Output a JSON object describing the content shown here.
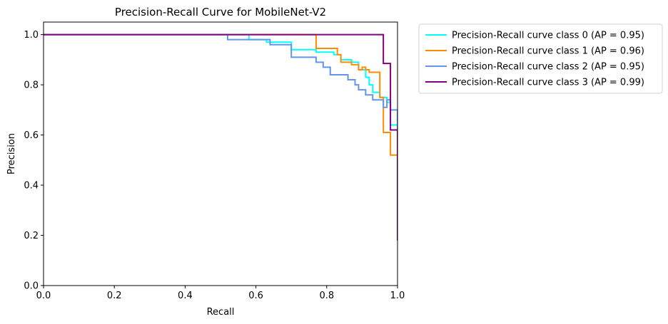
{
  "chart_data": {
    "type": "line",
    "title": "Precision-Recall Curve for MobileNet-V2",
    "xlabel": "Recall",
    "ylabel": "Precision",
    "xlim": [
      0.0,
      1.0
    ],
    "ylim": [
      0.0,
      1.05
    ],
    "xticks": [
      "0.0",
      "0.2",
      "0.4",
      "0.6",
      "0.8",
      "1.0"
    ],
    "yticks": [
      "0.0",
      "0.2",
      "0.4",
      "0.6",
      "0.8",
      "1.0"
    ],
    "grid": false,
    "legend_position": "outside-top-right",
    "series": [
      {
        "name": "Precision-Recall curve class 0 (AP = 0.95)",
        "color": "#00ffff",
        "points": [
          [
            0.0,
            1.0
          ],
          [
            0.58,
            1.0
          ],
          [
            0.58,
            0.98
          ],
          [
            0.63,
            0.98
          ],
          [
            0.63,
            0.97
          ],
          [
            0.7,
            0.97
          ],
          [
            0.7,
            0.94
          ],
          [
            0.77,
            0.94
          ],
          [
            0.77,
            0.93
          ],
          [
            0.81,
            0.93
          ],
          [
            0.82,
            0.93
          ],
          [
            0.82,
            0.92
          ],
          [
            0.84,
            0.92
          ],
          [
            0.84,
            0.9
          ],
          [
            0.87,
            0.9
          ],
          [
            0.87,
            0.89
          ],
          [
            0.89,
            0.89
          ],
          [
            0.89,
            0.86
          ],
          [
            0.91,
            0.86
          ],
          [
            0.91,
            0.83
          ],
          [
            0.92,
            0.83
          ],
          [
            0.92,
            0.8
          ],
          [
            0.93,
            0.8
          ],
          [
            0.93,
            0.77
          ],
          [
            0.95,
            0.77
          ],
          [
            0.95,
            0.75
          ],
          [
            0.97,
            0.75
          ],
          [
            0.97,
            0.73
          ],
          [
            0.98,
            0.73
          ],
          [
            0.98,
            0.64
          ],
          [
            1.0,
            0.64
          ],
          [
            1.0,
            0.25
          ]
        ]
      },
      {
        "name": "Precision-Recall curve class 1 (AP = 0.96)",
        "color": "#ff8c00",
        "points": [
          [
            0.0,
            1.0
          ],
          [
            0.77,
            1.0
          ],
          [
            0.77,
            0.945
          ],
          [
            0.83,
            0.945
          ],
          [
            0.83,
            0.92
          ],
          [
            0.84,
            0.92
          ],
          [
            0.84,
            0.89
          ],
          [
            0.87,
            0.89
          ],
          [
            0.87,
            0.88
          ],
          [
            0.89,
            0.88
          ],
          [
            0.89,
            0.86
          ],
          [
            0.9,
            0.86
          ],
          [
            0.9,
            0.87
          ],
          [
            0.91,
            0.87
          ],
          [
            0.91,
            0.86
          ],
          [
            0.92,
            0.86
          ],
          [
            0.92,
            0.85
          ],
          [
            0.95,
            0.85
          ],
          [
            0.95,
            0.75
          ],
          [
            0.96,
            0.75
          ],
          [
            0.96,
            0.61
          ],
          [
            0.98,
            0.61
          ],
          [
            0.98,
            0.52
          ],
          [
            1.0,
            0.52
          ],
          [
            1.0,
            0.18
          ]
        ]
      },
      {
        "name": "Precision-Recall curve class 2 (AP = 0.95)",
        "color": "#6495ed",
        "points": [
          [
            0.0,
            1.0
          ],
          [
            0.52,
            1.0
          ],
          [
            0.52,
            0.98
          ],
          [
            0.64,
            0.98
          ],
          [
            0.64,
            0.96
          ],
          [
            0.7,
            0.96
          ],
          [
            0.7,
            0.91
          ],
          [
            0.77,
            0.91
          ],
          [
            0.77,
            0.89
          ],
          [
            0.79,
            0.89
          ],
          [
            0.79,
            0.87
          ],
          [
            0.81,
            0.87
          ],
          [
            0.81,
            0.84
          ],
          [
            0.86,
            0.84
          ],
          [
            0.86,
            0.82
          ],
          [
            0.88,
            0.82
          ],
          [
            0.88,
            0.8
          ],
          [
            0.89,
            0.8
          ],
          [
            0.89,
            0.78
          ],
          [
            0.91,
            0.78
          ],
          [
            0.91,
            0.76
          ],
          [
            0.93,
            0.76
          ],
          [
            0.93,
            0.74
          ],
          [
            0.96,
            0.74
          ],
          [
            0.96,
            0.71
          ],
          [
            0.97,
            0.71
          ],
          [
            0.97,
            0.74
          ],
          [
            0.98,
            0.74
          ],
          [
            0.98,
            0.7
          ],
          [
            1.0,
            0.7
          ],
          [
            1.0,
            0.18
          ]
        ]
      },
      {
        "name": "Precision-Recall curve class 3 (AP = 0.99)",
        "color": "#800080",
        "points": [
          [
            0.0,
            1.0
          ],
          [
            0.96,
            1.0
          ],
          [
            0.96,
            0.885
          ],
          [
            0.98,
            0.885
          ],
          [
            0.98,
            0.62
          ],
          [
            1.0,
            0.62
          ],
          [
            1.0,
            0.18
          ]
        ]
      }
    ]
  }
}
